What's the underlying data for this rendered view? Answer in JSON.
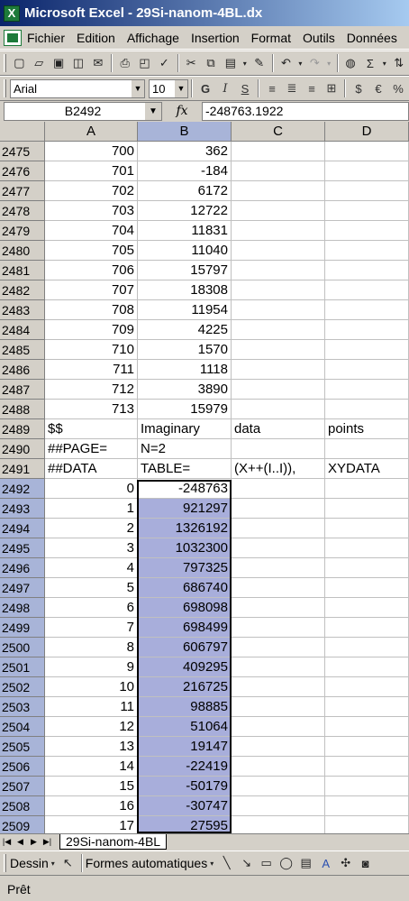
{
  "window": {
    "title": "Microsoft Excel - 29Si-nanom-4BL.dx"
  },
  "menu": [
    "Fichier",
    "Edition",
    "Affichage",
    "Insertion",
    "Format",
    "Outils",
    "Données"
  ],
  "format_bar": {
    "font": "Arial",
    "size": "10"
  },
  "formula_bar": {
    "cell_ref": "B2492",
    "fx": "fx",
    "content": "-248763.1922"
  },
  "columns": [
    "A",
    "B",
    "C",
    "D"
  ],
  "rows": [
    {
      "n": "2475",
      "a": "700",
      "b": "362",
      "c": "",
      "d": ""
    },
    {
      "n": "2476",
      "a": "701",
      "b": "-184",
      "c": "",
      "d": ""
    },
    {
      "n": "2477",
      "a": "702",
      "b": "6172",
      "c": "",
      "d": ""
    },
    {
      "n": "2478",
      "a": "703",
      "b": "12722",
      "c": "",
      "d": ""
    },
    {
      "n": "2479",
      "a": "704",
      "b": "11831",
      "c": "",
      "d": ""
    },
    {
      "n": "2480",
      "a": "705",
      "b": "11040",
      "c": "",
      "d": ""
    },
    {
      "n": "2481",
      "a": "706",
      "b": "15797",
      "c": "",
      "d": ""
    },
    {
      "n": "2482",
      "a": "707",
      "b": "18308",
      "c": "",
      "d": ""
    },
    {
      "n": "2483",
      "a": "708",
      "b": "11954",
      "c": "",
      "d": ""
    },
    {
      "n": "2484",
      "a": "709",
      "b": "4225",
      "c": "",
      "d": ""
    },
    {
      "n": "2485",
      "a": "710",
      "b": "1570",
      "c": "",
      "d": ""
    },
    {
      "n": "2486",
      "a": "711",
      "b": "1118",
      "c": "",
      "d": ""
    },
    {
      "n": "2487",
      "a": "712",
      "b": "3890",
      "c": "",
      "d": ""
    },
    {
      "n": "2488",
      "a": "713",
      "b": "15979",
      "c": "",
      "d": ""
    },
    {
      "n": "2489",
      "a": "$$",
      "b": "Imaginary",
      "c": "data",
      "d": "points",
      "text": true
    },
    {
      "n": "2490",
      "a": "##PAGE=",
      "b": "N=2",
      "c": "",
      "d": "",
      "text": true
    },
    {
      "n": "2491",
      "a": "##DATA",
      "b": "TABLE=",
      "c": "(X++(I..I)),",
      "d": "XYDATA",
      "text": true
    },
    {
      "n": "2492",
      "a": "0",
      "b": "-248763",
      "c": "",
      "d": "",
      "sel": true,
      "active": true
    },
    {
      "n": "2493",
      "a": "1",
      "b": "921297",
      "c": "",
      "d": "",
      "sel": true
    },
    {
      "n": "2494",
      "a": "2",
      "b": "1326192",
      "c": "",
      "d": "",
      "sel": true
    },
    {
      "n": "2495",
      "a": "3",
      "b": "1032300",
      "c": "",
      "d": "",
      "sel": true
    },
    {
      "n": "2496",
      "a": "4",
      "b": "797325",
      "c": "",
      "d": "",
      "sel": true
    },
    {
      "n": "2497",
      "a": "5",
      "b": "686740",
      "c": "",
      "d": "",
      "sel": true
    },
    {
      "n": "2498",
      "a": "6",
      "b": "698098",
      "c": "",
      "d": "",
      "sel": true
    },
    {
      "n": "2499",
      "a": "7",
      "b": "698499",
      "c": "",
      "d": "",
      "sel": true
    },
    {
      "n": "2500",
      "a": "8",
      "b": "606797",
      "c": "",
      "d": "",
      "sel": true
    },
    {
      "n": "2501",
      "a": "9",
      "b": "409295",
      "c": "",
      "d": "",
      "sel": true
    },
    {
      "n": "2502",
      "a": "10",
      "b": "216725",
      "c": "",
      "d": "",
      "sel": true
    },
    {
      "n": "2503",
      "a": "11",
      "b": "98885",
      "c": "",
      "d": "",
      "sel": true
    },
    {
      "n": "2504",
      "a": "12",
      "b": "51064",
      "c": "",
      "d": "",
      "sel": true
    },
    {
      "n": "2505",
      "a": "13",
      "b": "19147",
      "c": "",
      "d": "",
      "sel": true
    },
    {
      "n": "2506",
      "a": "14",
      "b": "-22419",
      "c": "",
      "d": "",
      "sel": true
    },
    {
      "n": "2507",
      "a": "15",
      "b": "-50179",
      "c": "",
      "d": "",
      "sel": true
    },
    {
      "n": "2508",
      "a": "16",
      "b": "-30747",
      "c": "",
      "d": "",
      "sel": true
    },
    {
      "n": "2509",
      "a": "17",
      "b": "27595",
      "c": "",
      "d": "",
      "sel": true
    }
  ],
  "sheet_tab": "29Si-nanom-4BL",
  "draw_toolbar": {
    "draw": "Dessin",
    "autoshapes": "Formes automatiques"
  },
  "status": "Prêt",
  "colors": {
    "selection": "#a8aedb",
    "title_start": "#0a246a",
    "title_end": "#a6caf0"
  }
}
